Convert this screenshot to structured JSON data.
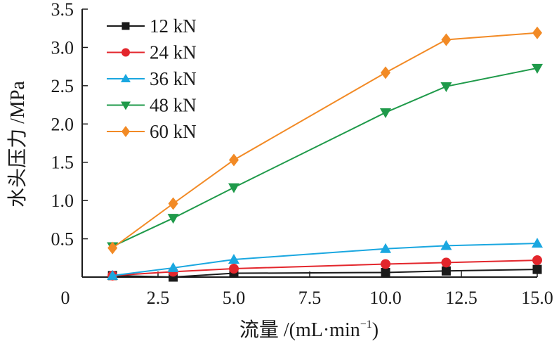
{
  "chart_data": {
    "type": "line",
    "title": "",
    "xlabel": "流量 /(mL·min",
    "xlabel_sup": "−1",
    "xlabel_close": ")",
    "ylabel": "水头压力 /MPa",
    "xlim": [
      0,
      15
    ],
    "ylim": [
      0,
      3.5
    ],
    "origin_label": "0",
    "xticks": [
      2.5,
      5.0,
      7.5,
      10.0,
      12.5,
      15.0
    ],
    "xtick_labels": [
      "2.5",
      "5.0",
      "7.5",
      "10.0",
      "12.5",
      "15.0"
    ],
    "yticks": [
      0.5,
      1.0,
      1.5,
      2.0,
      2.5,
      3.0,
      3.5
    ],
    "ytick_labels": [
      "0.5",
      "1.0",
      "1.5",
      "2.0",
      "2.5",
      "3.0",
      "3.5"
    ],
    "grid": false,
    "legend_position": "top-left",
    "x": [
      1,
      3,
      5,
      10,
      12,
      15
    ],
    "series": [
      {
        "name": "12 kN",
        "color": "#1a1a1a",
        "marker": "square",
        "values": [
          0.02,
          0.0,
          0.05,
          0.06,
          0.08,
          0.1
        ]
      },
      {
        "name": "24 kN",
        "color": "#e3262c",
        "marker": "circle",
        "values": [
          0.02,
          0.07,
          0.11,
          0.17,
          0.19,
          0.22
        ]
      },
      {
        "name": "36 kN",
        "color": "#1aa7e0",
        "marker": "triangle-up",
        "values": [
          0.02,
          0.12,
          0.23,
          0.37,
          0.41,
          0.44
        ]
      },
      {
        "name": "48 kN",
        "color": "#1f9a4a",
        "marker": "triangle-down",
        "values": [
          0.4,
          0.77,
          1.17,
          2.15,
          2.49,
          2.73
        ]
      },
      {
        "name": "60 kN",
        "color": "#f28a25",
        "marker": "diamond",
        "values": [
          0.38,
          0.96,
          1.53,
          2.67,
          3.1,
          3.19
        ]
      }
    ]
  }
}
